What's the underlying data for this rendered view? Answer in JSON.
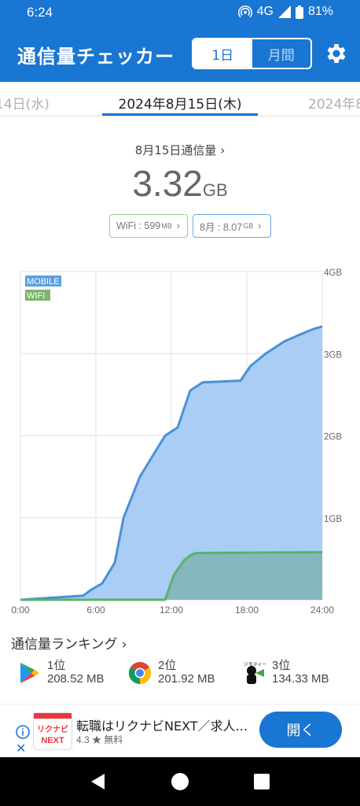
{
  "status": {
    "time": "6:24",
    "network": "4G",
    "battery": "81%"
  },
  "app": {
    "title": "通信量チェッカー",
    "tab_day": "1日",
    "tab_month": "月間"
  },
  "dates": {
    "prev": "14日(水)",
    "current": "2024年8月15日(木)",
    "next": "2024年8"
  },
  "usage": {
    "label": "8月15日通信量",
    "value": "3.32",
    "unit": "GB"
  },
  "chips": {
    "wifi_label": "WiFi : 599",
    "wifi_unit": "MB",
    "month_label": "8月 : 8.07",
    "month_unit": "GB"
  },
  "chart_data": {
    "type": "area",
    "legend": [
      "MOBILE",
      "WIFI"
    ],
    "x_ticks": [
      "0:00",
      "6:00",
      "12:00",
      "18:00",
      "24:00"
    ],
    "y_ticks": [
      "4GB",
      "3GB",
      "2GB",
      "1GB"
    ],
    "xlim": [
      0,
      24
    ],
    "ylim": [
      0,
      4
    ],
    "series": [
      {
        "name": "MOBILE",
        "color": "#4a90d9",
        "fill": "#a9cdf4",
        "points": [
          [
            0,
            0
          ],
          [
            5,
            0.05
          ],
          [
            5.6,
            0.12
          ],
          [
            6.5,
            0.2
          ],
          [
            7.5,
            0.45
          ],
          [
            8.2,
            1.0
          ],
          [
            9.5,
            1.5
          ],
          [
            11.5,
            2.0
          ],
          [
            12.5,
            2.1
          ],
          [
            13.5,
            2.55
          ],
          [
            14.5,
            2.65
          ],
          [
            17.5,
            2.67
          ],
          [
            18.3,
            2.85
          ],
          [
            19.5,
            3.0
          ],
          [
            21,
            3.15
          ],
          [
            22.5,
            3.25
          ],
          [
            23.3,
            3.3
          ],
          [
            24,
            3.33
          ]
        ]
      },
      {
        "name": "WIFI",
        "color": "#5ab26a",
        "fill": "#7fb6b8",
        "points": [
          [
            0,
            0
          ],
          [
            11.5,
            0.0
          ],
          [
            12.2,
            0.3
          ],
          [
            13,
            0.48
          ],
          [
            13.6,
            0.55
          ],
          [
            14,
            0.57
          ],
          [
            24,
            0.58
          ]
        ]
      }
    ]
  },
  "ranking": {
    "title": "通信量ランキング",
    "items": [
      {
        "rank": "1位",
        "value": "208.52 MB",
        "icon": "play-store-icon"
      },
      {
        "rank": "2位",
        "value": "201.92 MB",
        "icon": "chrome-icon"
      },
      {
        "rank": "3位",
        "value": "134.33 MB",
        "icon": "jimoty-icon"
      }
    ]
  },
  "ad": {
    "title": "転職はリクナビNEXT／求人...",
    "rating": "4.3 ★ 無料",
    "button": "開く",
    "logo_text_top": "リクナビ",
    "logo_text_bottom": "NEXT"
  }
}
